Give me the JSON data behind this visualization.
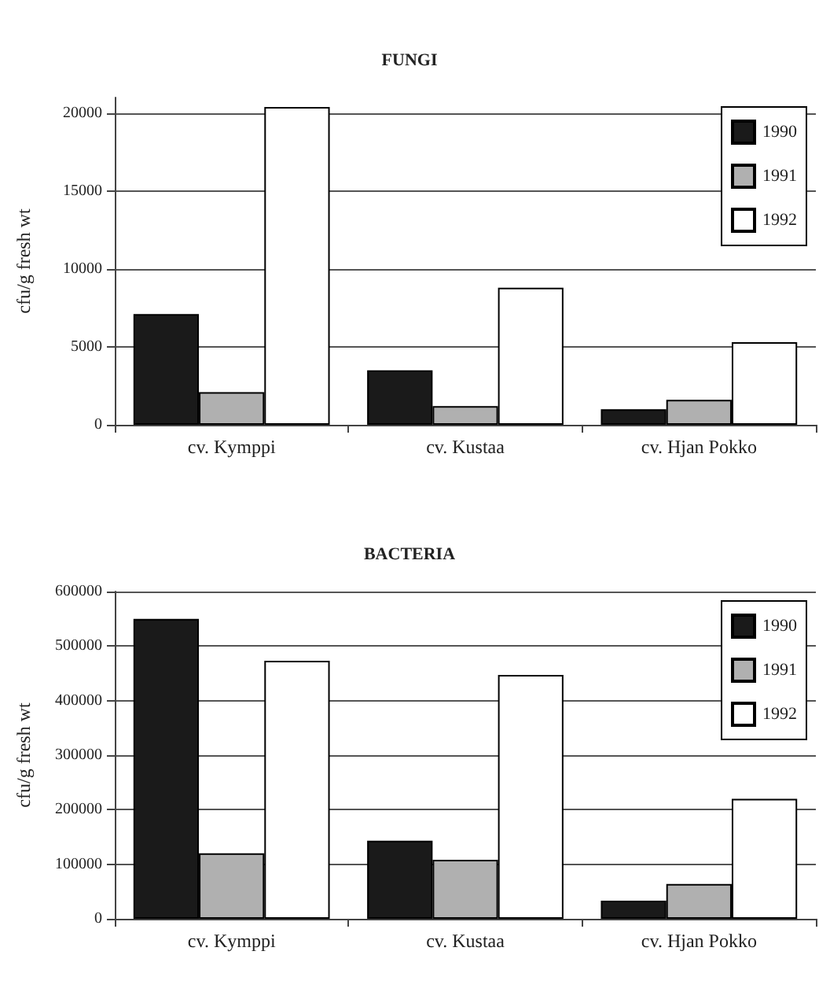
{
  "chart_data": [
    {
      "type": "bar",
      "title": "FUNGI",
      "ylabel": "cfu/g fresh wt",
      "categories": [
        "cv. Kymppi",
        "cv. Kustaa",
        "cv. Hjan Pokko"
      ],
      "series": [
        {
          "name": "1990",
          "color": "#1a1a1a",
          "values": [
            7100,
            3500,
            1000
          ]
        },
        {
          "name": "1991",
          "color": "#b0b0b0",
          "values": [
            2100,
            1200,
            1600
          ]
        },
        {
          "name": "1992",
          "color": "#ffffff",
          "values": [
            20400,
            8800,
            5300
          ]
        }
      ],
      "ylim": [
        0,
        21000
      ],
      "yticks": [
        0,
        5000,
        10000,
        15000,
        20000
      ],
      "grid": "y",
      "legend": "top right"
    },
    {
      "type": "bar",
      "title": "BACTERIA",
      "ylabel": "cfu/g fresh wt",
      "categories": [
        "cv. Kymppi",
        "cv. Kustaa",
        "cv. Hjan Pokko"
      ],
      "series": [
        {
          "name": "1990",
          "color": "#1a1a1a",
          "values": [
            550000,
            143000,
            33000
          ]
        },
        {
          "name": "1991",
          "color": "#b0b0b0",
          "values": [
            120000,
            108000,
            64000
          ]
        },
        {
          "name": "1992",
          "color": "#ffffff",
          "values": [
            473000,
            447000,
            220000
          ]
        }
      ],
      "ylim": [
        0,
        600000
      ],
      "yticks": [
        0,
        100000,
        200000,
        300000,
        400000,
        500000,
        600000
      ],
      "grid": "y",
      "legend": "top right"
    }
  ]
}
